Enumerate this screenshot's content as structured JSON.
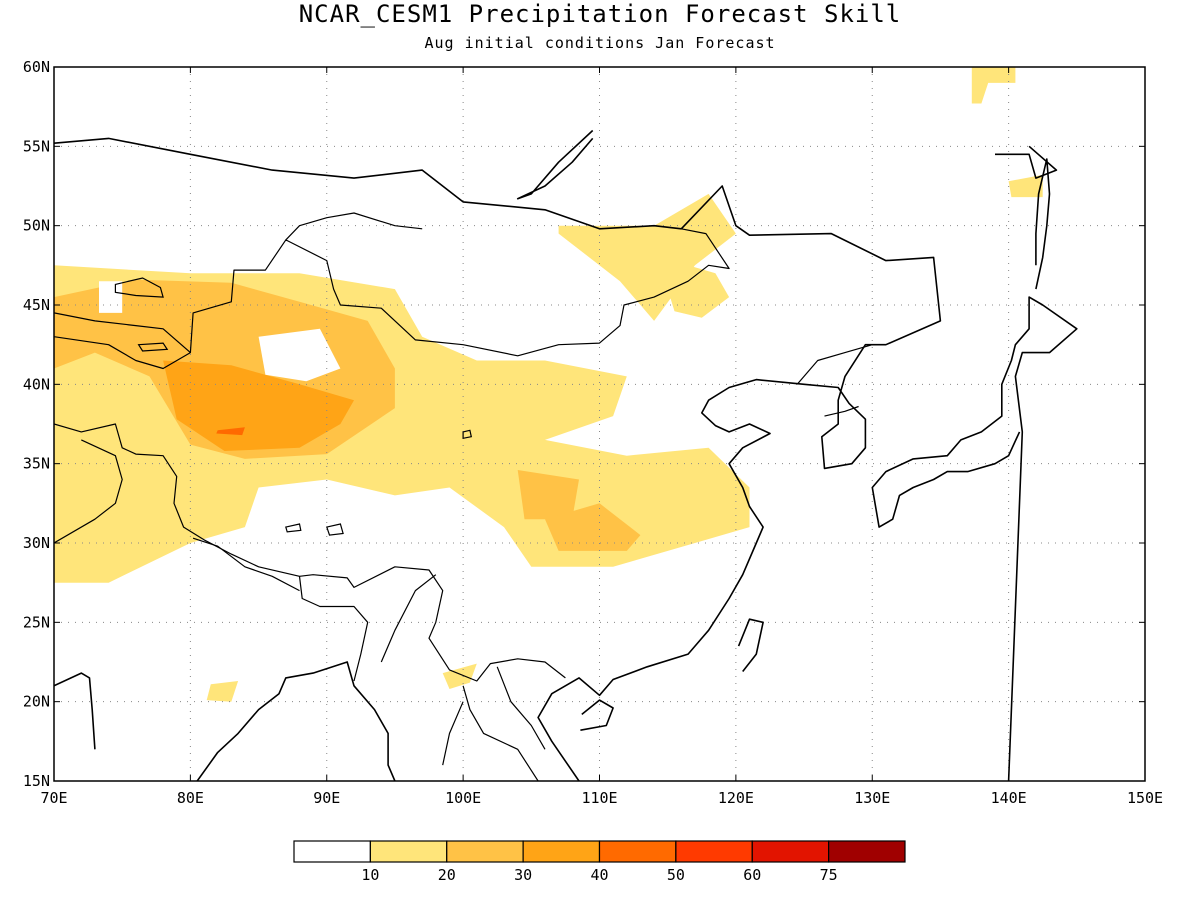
{
  "title": "NCAR_CESM1 Precipitation Forecast Skill",
  "subtitle": "Aug initial conditions  Jan Forecast",
  "map": {
    "lon_range": [
      70,
      150
    ],
    "lat_range": [
      15,
      60
    ],
    "lon_ticks": [
      "70E",
      "80E",
      "90E",
      "100E",
      "110E",
      "120E",
      "130E",
      "140E",
      "150E"
    ],
    "lat_ticks": [
      "15N",
      "20N",
      "25N",
      "30N",
      "35N",
      "40N",
      "45N",
      "50N",
      "55N",
      "60N"
    ],
    "grid": true
  },
  "colorbar": {
    "labels": [
      "10",
      "20",
      "30",
      "40",
      "50",
      "60",
      "75"
    ],
    "colors": [
      "#ffffff",
      "#ffe57a",
      "#ffc246",
      "#ffa416",
      "#ff6a00",
      "#ff3a00",
      "#e21400",
      "#a00000"
    ]
  },
  "skill_regions": [
    {
      "level": 1,
      "color": "#ffe57a",
      "lonlat": [
        [
          70,
          47.5
        ],
        [
          80,
          47
        ],
        [
          88,
          47
        ],
        [
          95,
          46
        ],
        [
          97,
          43
        ],
        [
          101,
          41.5
        ],
        [
          106,
          41.5
        ],
        [
          112,
          40.5
        ],
        [
          111,
          38
        ],
        [
          106,
          36.5
        ],
        [
          112,
          35.5
        ],
        [
          118,
          36
        ],
        [
          121,
          33.5
        ],
        [
          121,
          31
        ],
        [
          117,
          30
        ],
        [
          111,
          28.5
        ],
        [
          105,
          28.5
        ],
        [
          103,
          31
        ],
        [
          99,
          33.5
        ],
        [
          95,
          33
        ],
        [
          90,
          34
        ],
        [
          85,
          33.5
        ],
        [
          84,
          31
        ],
        [
          80,
          30
        ],
        [
          74,
          27.5
        ],
        [
          70,
          27.5
        ]
      ]
    },
    {
      "level": 1,
      "color": "#ffe57a",
      "lonlat": [
        [
          107,
          50
        ],
        [
          114,
          50
        ],
        [
          118,
          52
        ],
        [
          120,
          49.5
        ],
        [
          117,
          47.5
        ],
        [
          114,
          44
        ],
        [
          111.5,
          46.5
        ],
        [
          107,
          49.5
        ]
      ]
    },
    {
      "level": 1,
      "color": "#ffe57a",
      "lonlat": [
        [
          116.5,
          47.5
        ],
        [
          118.5,
          47
        ],
        [
          119.5,
          45.5
        ],
        [
          117.5,
          44.2
        ],
        [
          115.5,
          44.6
        ],
        [
          115,
          46
        ]
      ]
    },
    {
      "level": 1,
      "color": "#ffe57a",
      "lonlat": [
        [
          137.3,
          60
        ],
        [
          140.5,
          60
        ],
        [
          140.5,
          59
        ],
        [
          138.5,
          59
        ],
        [
          138,
          57.7
        ],
        [
          137.3,
          57.7
        ]
      ]
    },
    {
      "level": 1,
      "color": "#ffe57a",
      "lonlat": [
        [
          140,
          52.8
        ],
        [
          142.5,
          53.2
        ],
        [
          142.5,
          51.8
        ],
        [
          140.2,
          51.8
        ]
      ]
    },
    {
      "level": 1,
      "color": "#ffe57a",
      "lonlat": [
        [
          81.5,
          21.1
        ],
        [
          83.5,
          21.3
        ],
        [
          83,
          20
        ],
        [
          81.2,
          20.1
        ]
      ]
    },
    {
      "level": 1,
      "color": "#ffe57a",
      "lonlat": [
        [
          98.5,
          21.8
        ],
        [
          101,
          22.4
        ],
        [
          100.5,
          21.2
        ],
        [
          99,
          20.8
        ]
      ]
    },
    {
      "level": 2,
      "color": "#ffc246",
      "lonlat": [
        [
          70,
          45.5
        ],
        [
          76,
          46.6
        ],
        [
          83,
          46.4
        ],
        [
          88,
          45.2
        ],
        [
          93,
          44
        ],
        [
          95,
          41
        ],
        [
          95,
          38.5
        ],
        [
          90,
          35.6
        ],
        [
          84,
          35.3
        ],
        [
          80,
          36.2
        ],
        [
          77,
          40.5
        ],
        [
          73,
          42
        ],
        [
          70,
          41
        ]
      ]
    },
    {
      "level": 2,
      "color": "#ffc246",
      "lonlat": [
        [
          104,
          34.6
        ],
        [
          108.5,
          34
        ],
        [
          108,
          31.5
        ],
        [
          104.5,
          31.5
        ]
      ]
    },
    {
      "level": 2,
      "color": "#ffc246",
      "lonlat": [
        [
          106,
          31.5
        ],
        [
          110,
          32.5
        ],
        [
          113,
          30.5
        ],
        [
          112,
          29.5
        ],
        [
          107,
          29.5
        ]
      ]
    },
    {
      "level": 3,
      "color": "#ffa416",
      "lonlat": [
        [
          78,
          41.5
        ],
        [
          83,
          41.2
        ],
        [
          88,
          40
        ],
        [
          92,
          39
        ],
        [
          91,
          37.5
        ],
        [
          88,
          36
        ],
        [
          82.5,
          35.8
        ],
        [
          79,
          37.8
        ]
      ]
    },
    {
      "level": 4,
      "color": "#ff6a00",
      "lonlat": [
        [
          82,
          37.1
        ],
        [
          84,
          37.3
        ],
        [
          83.8,
          36.8
        ],
        [
          81.9,
          36.9
        ]
      ]
    }
  ],
  "masked_regions": [
    {
      "lonlat": [
        [
          73.3,
          46.5
        ],
        [
          75,
          46.5
        ],
        [
          75,
          44.5
        ],
        [
          73.3,
          44.5
        ]
      ]
    },
    {
      "lonlat": [
        [
          85,
          43
        ],
        [
          89.5,
          43.5
        ],
        [
          91,
          41
        ],
        [
          88.5,
          40.2
        ],
        [
          85.5,
          40.6
        ]
      ]
    }
  ],
  "coastlines": [
    [
      [
        70,
        55.2
      ],
      [
        74,
        55.5
      ],
      [
        80,
        54.5
      ],
      [
        86,
        53.5
      ],
      [
        92,
        53
      ],
      [
        97,
        53.5
      ],
      [
        100,
        51.5
      ],
      [
        106,
        51
      ],
      [
        110,
        49.8
      ],
      [
        114,
        50
      ],
      [
        116,
        49.8
      ],
      [
        119,
        52.5
      ],
      [
        120,
        50
      ],
      [
        121,
        49.4
      ],
      [
        127,
        49.5
      ],
      [
        131,
        47.8
      ],
      [
        134.5,
        48
      ],
      [
        135,
        44
      ],
      [
        131,
        42.5
      ],
      [
        129.5,
        42.5
      ],
      [
        128,
        40.5
      ],
      [
        127.5,
        39
      ],
      [
        127.5,
        37.5
      ],
      [
        126.3,
        36.7
      ],
      [
        126.5,
        34.7
      ],
      [
        128.5,
        35
      ],
      [
        129.5,
        36
      ],
      [
        129.5,
        37.8
      ],
      [
        128.3,
        38.8
      ],
      [
        127.5,
        39.8
      ],
      [
        125,
        40
      ],
      [
        121.5,
        40.3
      ],
      [
        119.5,
        39.8
      ],
      [
        118,
        39
      ],
      [
        117.5,
        38.2
      ],
      [
        118.5,
        37.4
      ],
      [
        119.5,
        37
      ],
      [
        121,
        37.5
      ],
      [
        122.5,
        36.9
      ],
      [
        120.5,
        36
      ],
      [
        119.5,
        35
      ],
      [
        120.5,
        33.5
      ],
      [
        121,
        32.3
      ],
      [
        122,
        31
      ],
      [
        121.5,
        30
      ],
      [
        120.5,
        28
      ],
      [
        119.5,
        26.5
      ],
      [
        118,
        24.5
      ],
      [
        116.5,
        23
      ],
      [
        113.5,
        22.2
      ],
      [
        111,
        21.4
      ],
      [
        110,
        20.4
      ],
      [
        108.5,
        21.5
      ],
      [
        106.5,
        20.5
      ],
      [
        105.5,
        19
      ],
      [
        106.5,
        17.5
      ],
      [
        108.5,
        15
      ]
    ],
    [
      [
        95,
        15
      ],
      [
        94.5,
        16
      ],
      [
        94.5,
        18
      ],
      [
        93.5,
        19.5
      ],
      [
        92,
        21
      ],
      [
        91.5,
        22.5
      ],
      [
        89,
        21.8
      ],
      [
        87,
        21.5
      ],
      [
        86.5,
        20.5
      ],
      [
        85,
        19.5
      ],
      [
        83.5,
        18
      ],
      [
        82,
        16.8
      ],
      [
        80.5,
        15
      ]
    ],
    [
      [
        70,
        21
      ],
      [
        72,
        21.8
      ],
      [
        72.6,
        21.5
      ],
      [
        72.8,
        19.5
      ],
      [
        73,
        17
      ]
    ],
    [
      [
        140,
        15
      ],
      [
        141,
        37
      ],
      [
        140.5,
        40.5
      ],
      [
        141,
        42
      ],
      [
        143,
        42
      ],
      [
        145,
        43.5
      ],
      [
        142.5,
        45
      ],
      [
        141.5,
        45.5
      ],
      [
        141.5,
        43.5
      ],
      [
        140.5,
        42.5
      ],
      [
        140.2,
        41.5
      ],
      [
        139.5,
        40
      ],
      [
        139.5,
        38
      ],
      [
        138,
        37
      ],
      [
        136.5,
        36.5
      ],
      [
        135.5,
        35.5
      ],
      [
        133,
        35.3
      ],
      [
        131,
        34.5
      ],
      [
        130,
        33.5
      ],
      [
        130.5,
        31
      ],
      [
        131.5,
        31.5
      ],
      [
        132,
        33
      ],
      [
        133,
        33.5
      ],
      [
        134.5,
        34
      ],
      [
        135.5,
        34.5
      ],
      [
        137,
        34.5
      ],
      [
        139,
        35
      ],
      [
        140,
        35.5
      ],
      [
        140.8,
        37
      ]
    ],
    [
      [
        142,
        46
      ],
      [
        142.5,
        48
      ],
      [
        142.8,
        50
      ],
      [
        143,
        52
      ],
      [
        142.8,
        54.2
      ],
      [
        142.2,
        52
      ],
      [
        142,
        49.5
      ],
      [
        142,
        47.5
      ]
    ],
    [
      [
        139,
        54.5
      ],
      [
        141.5,
        54.5
      ],
      [
        142,
        53
      ],
      [
        143.5,
        53.5
      ],
      [
        141.5,
        55
      ]
    ],
    [
      [
        120.5,
        21.9
      ],
      [
        121.5,
        23
      ],
      [
        122,
        25
      ],
      [
        121,
        25.2
      ],
      [
        120.2,
        23.5
      ]
    ],
    [
      [
        108.6,
        18.2
      ],
      [
        110.5,
        18.5
      ],
      [
        111,
        19.6
      ],
      [
        110,
        20.1
      ],
      [
        108.7,
        19.2
      ]
    ],
    [
      [
        109.5,
        56
      ],
      [
        107,
        54
      ],
      [
        105,
        52
      ],
      [
        104,
        51.7
      ],
      [
        106,
        52.5
      ],
      [
        108,
        54
      ],
      [
        109.5,
        55.5
      ]
    ]
  ],
  "borders": [
    [
      [
        70,
        43
      ],
      [
        74,
        42.5
      ],
      [
        76,
        41.5
      ],
      [
        78,
        41
      ],
      [
        80,
        42
      ],
      [
        80.2,
        44.5
      ],
      [
        83,
        45.2
      ],
      [
        83.2,
        47.2
      ],
      [
        85.5,
        47.2
      ],
      [
        87,
        49.1
      ],
      [
        90,
        47.8
      ],
      [
        90.5,
        46
      ],
      [
        91,
        45
      ],
      [
        94,
        44.8
      ],
      [
        96.5,
        42.8
      ],
      [
        100,
        42.5
      ],
      [
        104,
        41.8
      ],
      [
        107,
        42.5
      ],
      [
        110,
        42.6
      ],
      [
        111.5,
        43.7
      ],
      [
        111.8,
        45
      ],
      [
        114,
        45.5
      ],
      [
        116.5,
        46.5
      ],
      [
        118,
        47.5
      ],
      [
        119.5,
        47.3
      ],
      [
        117.8,
        49.5
      ],
      [
        116,
        49.8
      ]
    ],
    [
      [
        70,
        37.5
      ],
      [
        72,
        37
      ],
      [
        74.5,
        37.5
      ],
      [
        75,
        36
      ],
      [
        76,
        35.6
      ],
      [
        78,
        35.5
      ],
      [
        79,
        34.2
      ],
      [
        78.8,
        32.5
      ],
      [
        79.5,
        31
      ],
      [
        81,
        30.2
      ],
      [
        83,
        29.3
      ],
      [
        85,
        28.5
      ],
      [
        88,
        27.9
      ],
      [
        89,
        28
      ],
      [
        91.5,
        27.8
      ],
      [
        92,
        27.2
      ],
      [
        95,
        28.5
      ],
      [
        97.5,
        28.3
      ],
      [
        98.5,
        27
      ],
      [
        98,
        25
      ],
      [
        97.5,
        24
      ],
      [
        99,
        22
      ],
      [
        101,
        21.3
      ],
      [
        102,
        22.4
      ],
      [
        104,
        22.7
      ],
      [
        106,
        22.5
      ],
      [
        107.5,
        21.5
      ]
    ],
    [
      [
        70,
        30
      ],
      [
        73,
        31.5
      ],
      [
        74.5,
        32.5
      ],
      [
        75,
        34
      ],
      [
        74.5,
        35.5
      ],
      [
        72,
        36.5
      ]
    ],
    [
      [
        88,
        27.9
      ],
      [
        88.2,
        26.5
      ],
      [
        89.5,
        26
      ],
      [
        92,
        26
      ],
      [
        93,
        25
      ],
      [
        92.5,
        23
      ],
      [
        92,
        21.3
      ]
    ],
    [
      [
        80.2,
        30.3
      ],
      [
        82,
        29.8
      ],
      [
        84,
        28.5
      ],
      [
        86,
        27.9
      ],
      [
        88,
        27
      ]
    ],
    [
      [
        94,
        22.5
      ],
      [
        95,
        24.5
      ],
      [
        96.5,
        27
      ],
      [
        98,
        28
      ]
    ],
    [
      [
        100,
        21
      ],
      [
        100.5,
        19.5
      ],
      [
        101.5,
        18
      ],
      [
        104,
        17
      ],
      [
        105.5,
        15
      ]
    ],
    [
      [
        98.5,
        16
      ],
      [
        99,
        18
      ],
      [
        100,
        20
      ]
    ],
    [
      [
        102.5,
        22.2
      ],
      [
        103.5,
        20
      ],
      [
        105,
        18.5
      ],
      [
        106,
        17
      ]
    ],
    [
      [
        124.5,
        40
      ],
      [
        126,
        41.5
      ],
      [
        128,
        42
      ],
      [
        130,
        42.5
      ]
    ],
    [
      [
        126.5,
        38
      ],
      [
        128,
        38.3
      ],
      [
        129,
        38.6
      ]
    ],
    [
      [
        80,
        42
      ],
      [
        78,
        43.5
      ],
      [
        76,
        43.7
      ],
      [
        73,
        44
      ],
      [
        70,
        44.5
      ]
    ],
    [
      [
        87,
        49.1
      ],
      [
        88,
        50
      ],
      [
        90,
        50.5
      ],
      [
        92,
        50.8
      ],
      [
        95,
        50
      ],
      [
        97,
        49.8
      ]
    ]
  ],
  "lakes": [
    [
      [
        74.5,
        46.3
      ],
      [
        76.5,
        46.7
      ],
      [
        77.8,
        46.1
      ],
      [
        78,
        45.5
      ],
      [
        76,
        45.6
      ],
      [
        74.5,
        45.8
      ]
    ],
    [
      [
        76.2,
        42.5
      ],
      [
        78,
        42.6
      ],
      [
        78.3,
        42.2
      ],
      [
        76.5,
        42.1
      ]
    ],
    [
      [
        100,
        37
      ],
      [
        100.5,
        37.1
      ],
      [
        100.6,
        36.7
      ],
      [
        100,
        36.6
      ]
    ],
    [
      [
        90,
        31
      ],
      [
        91,
        31.2
      ],
      [
        91.2,
        30.6
      ],
      [
        90.2,
        30.5
      ]
    ],
    [
      [
        87,
        31
      ],
      [
        88,
        31.2
      ],
      [
        88.1,
        30.8
      ],
      [
        87.1,
        30.7
      ]
    ]
  ]
}
